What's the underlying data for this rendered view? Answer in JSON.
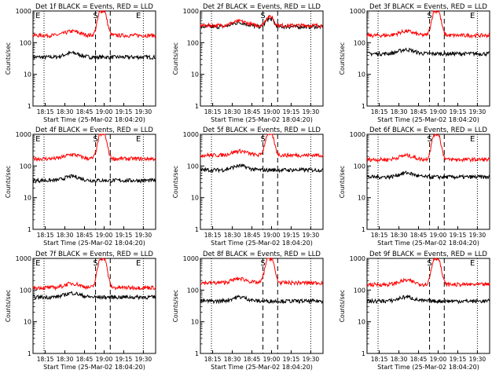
{
  "chart_data": [
    {
      "type": "line",
      "title": "Det 1f BLACK = Events, RED = LLD",
      "xlabel": "Start Time (25-Mar-02 18:04:20)",
      "ylabel": "Counts/sec",
      "y_scale": "log",
      "ylim": [
        1,
        1000
      ],
      "x_ticks": [
        "18:15",
        "18:30",
        "18:45",
        "19:00",
        "19:15",
        "19:30"
      ],
      "y_ticks": [
        "1",
        "10",
        "100",
        "1000"
      ],
      "markers": [
        "E",
        "S",
        "E"
      ],
      "series": [
        {
          "name": "BLACK = Events",
          "color": "#000000",
          "baseline": 35,
          "peak": null
        },
        {
          "name": "RED = LLD",
          "color": "#ff0000",
          "baseline": 170,
          "peak": 1000
        }
      ]
    },
    {
      "type": "line",
      "title": "Det 2f BLACK = Events, RED = LLD",
      "xlabel": "Start Time (25-Mar-02 18:04:20)",
      "ylabel": "Counts/sec",
      "y_scale": "log",
      "ylim": [
        1,
        1000
      ],
      "x_ticks": [
        "18:15",
        "18:30",
        "18:45",
        "19:00",
        "19:15",
        "19:30"
      ],
      "y_ticks": [
        "1",
        "10",
        "100",
        "1000"
      ],
      "markers": [
        "S"
      ],
      "series": [
        {
          "name": "BLACK = Events",
          "color": "#000000",
          "baseline": 320,
          "peak": 550
        },
        {
          "name": "RED = LLD",
          "color": "#ff0000",
          "baseline": 350,
          "peak": 650
        }
      ]
    },
    {
      "type": "line",
      "title": "Det 3f BLACK = Events, RED = LLD",
      "xlabel": "Start Time (25-Mar-02 18:04:20)",
      "ylabel": "Counts/sec",
      "y_scale": "log",
      "ylim": [
        1,
        1000
      ],
      "x_ticks": [
        "18:15",
        "18:30",
        "18:45",
        "19:00",
        "19:15",
        "19:30"
      ],
      "y_ticks": [
        "1",
        "10",
        "100",
        "1000"
      ],
      "markers": [
        "S",
        "E"
      ],
      "series": [
        {
          "name": "BLACK = Events",
          "color": "#000000",
          "baseline": 45,
          "peak": null
        },
        {
          "name": "RED = LLD",
          "color": "#ff0000",
          "baseline": 170,
          "peak": 1000
        }
      ]
    },
    {
      "type": "line",
      "title": "Det 4f BLACK = Events, RED = LLD",
      "xlabel": "Start Time (25-Mar-02 18:04:20)",
      "ylabel": "Counts/sec",
      "y_scale": "log",
      "ylim": [
        1,
        1000
      ],
      "x_ticks": [
        "18:15",
        "18:30",
        "18:45",
        "19:00",
        "19:15",
        "19:30"
      ],
      "y_ticks": [
        "1",
        "10",
        "100",
        "1000"
      ],
      "markers": [
        "E",
        "S",
        "E"
      ],
      "series": [
        {
          "name": "BLACK = Events",
          "color": "#000000",
          "baseline": 35,
          "peak": null
        },
        {
          "name": "RED = LLD",
          "color": "#ff0000",
          "baseline": 170,
          "peak": 1000
        }
      ]
    },
    {
      "type": "line",
      "title": "Det 5f BLACK = Events, RED = LLD",
      "xlabel": "Start Time (25-Mar-02 18:04:20)",
      "ylabel": "Counts/sec",
      "y_scale": "log",
      "ylim": [
        1,
        1000
      ],
      "x_ticks": [
        "18:15",
        "18:30",
        "18:45",
        "19:00",
        "19:15",
        "19:30"
      ],
      "y_ticks": [
        "1",
        "10",
        "100",
        "1000"
      ],
      "markers": [
        "S"
      ],
      "series": [
        {
          "name": "BLACK = Events",
          "color": "#000000",
          "baseline": 75,
          "peak": null
        },
        {
          "name": "RED = LLD",
          "color": "#ff0000",
          "baseline": 220,
          "peak": 1000
        }
      ]
    },
    {
      "type": "line",
      "title": "Det 6f BLACK = Events, RED = LLD",
      "xlabel": "Start Time (25-Mar-02 18:04:20)",
      "ylabel": "Counts/sec",
      "y_scale": "log",
      "ylim": [
        1,
        1000
      ],
      "x_ticks": [
        "18:15",
        "18:30",
        "18:45",
        "19:00",
        "19:15",
        "19:30"
      ],
      "y_ticks": [
        "1",
        "10",
        "100",
        "1000"
      ],
      "markers": [
        "S",
        "E"
      ],
      "series": [
        {
          "name": "BLACK = Events",
          "color": "#000000",
          "baseline": 45,
          "peak": null
        },
        {
          "name": "RED = LLD",
          "color": "#ff0000",
          "baseline": 160,
          "peak": 1000
        }
      ]
    },
    {
      "type": "line",
      "title": "Det 7f BLACK = Events, RED = LLD",
      "xlabel": "Start Time (25-Mar-02 18:04:20)",
      "ylabel": "Counts/sec",
      "y_scale": "log",
      "ylim": [
        1,
        1000
      ],
      "x_ticks": [
        "18:15",
        "18:30",
        "18:45",
        "19:00",
        "19:15",
        "19:30"
      ],
      "y_ticks": [
        "1",
        "10",
        "100",
        "1000"
      ],
      "markers": [
        "E",
        "S",
        "E"
      ],
      "series": [
        {
          "name": "BLACK = Events",
          "color": "#000000",
          "baseline": 60,
          "peak": null
        },
        {
          "name": "RED = LLD",
          "color": "#ff0000",
          "baseline": 120,
          "peak": 1000
        }
      ]
    },
    {
      "type": "line",
      "title": "Det 8f BLACK = Events, RED = LLD",
      "xlabel": "Start Time (25-Mar-02 18:04:20)",
      "ylabel": "Counts/sec",
      "y_scale": "log",
      "ylim": [
        1,
        1000
      ],
      "x_ticks": [
        "18:15",
        "18:30",
        "18:45",
        "19:00",
        "19:15",
        "19:30"
      ],
      "y_ticks": [
        "1",
        "10",
        "100",
        "1000"
      ],
      "markers": [
        "S"
      ],
      "series": [
        {
          "name": "BLACK = Events",
          "color": "#000000",
          "baseline": 45,
          "peak": null
        },
        {
          "name": "RED = LLD",
          "color": "#ff0000",
          "baseline": 170,
          "peak": 1000
        }
      ]
    },
    {
      "type": "line",
      "title": "Det 9f BLACK = Events, RED = LLD",
      "xlabel": "Start Time (25-Mar-02 18:04:20)",
      "ylabel": "Counts/sec",
      "y_scale": "log",
      "ylim": [
        1,
        1000
      ],
      "x_ticks": [
        "18:15",
        "18:30",
        "18:45",
        "19:00",
        "19:15",
        "19:30"
      ],
      "y_ticks": [
        "1",
        "10",
        "100",
        "1000"
      ],
      "markers": [
        "S",
        "E"
      ],
      "series": [
        {
          "name": "BLACK = Events",
          "color": "#000000",
          "baseline": 45,
          "peak": null
        },
        {
          "name": "RED = LLD",
          "color": "#ff0000",
          "baseline": 150,
          "peak": 1000
        }
      ]
    }
  ]
}
